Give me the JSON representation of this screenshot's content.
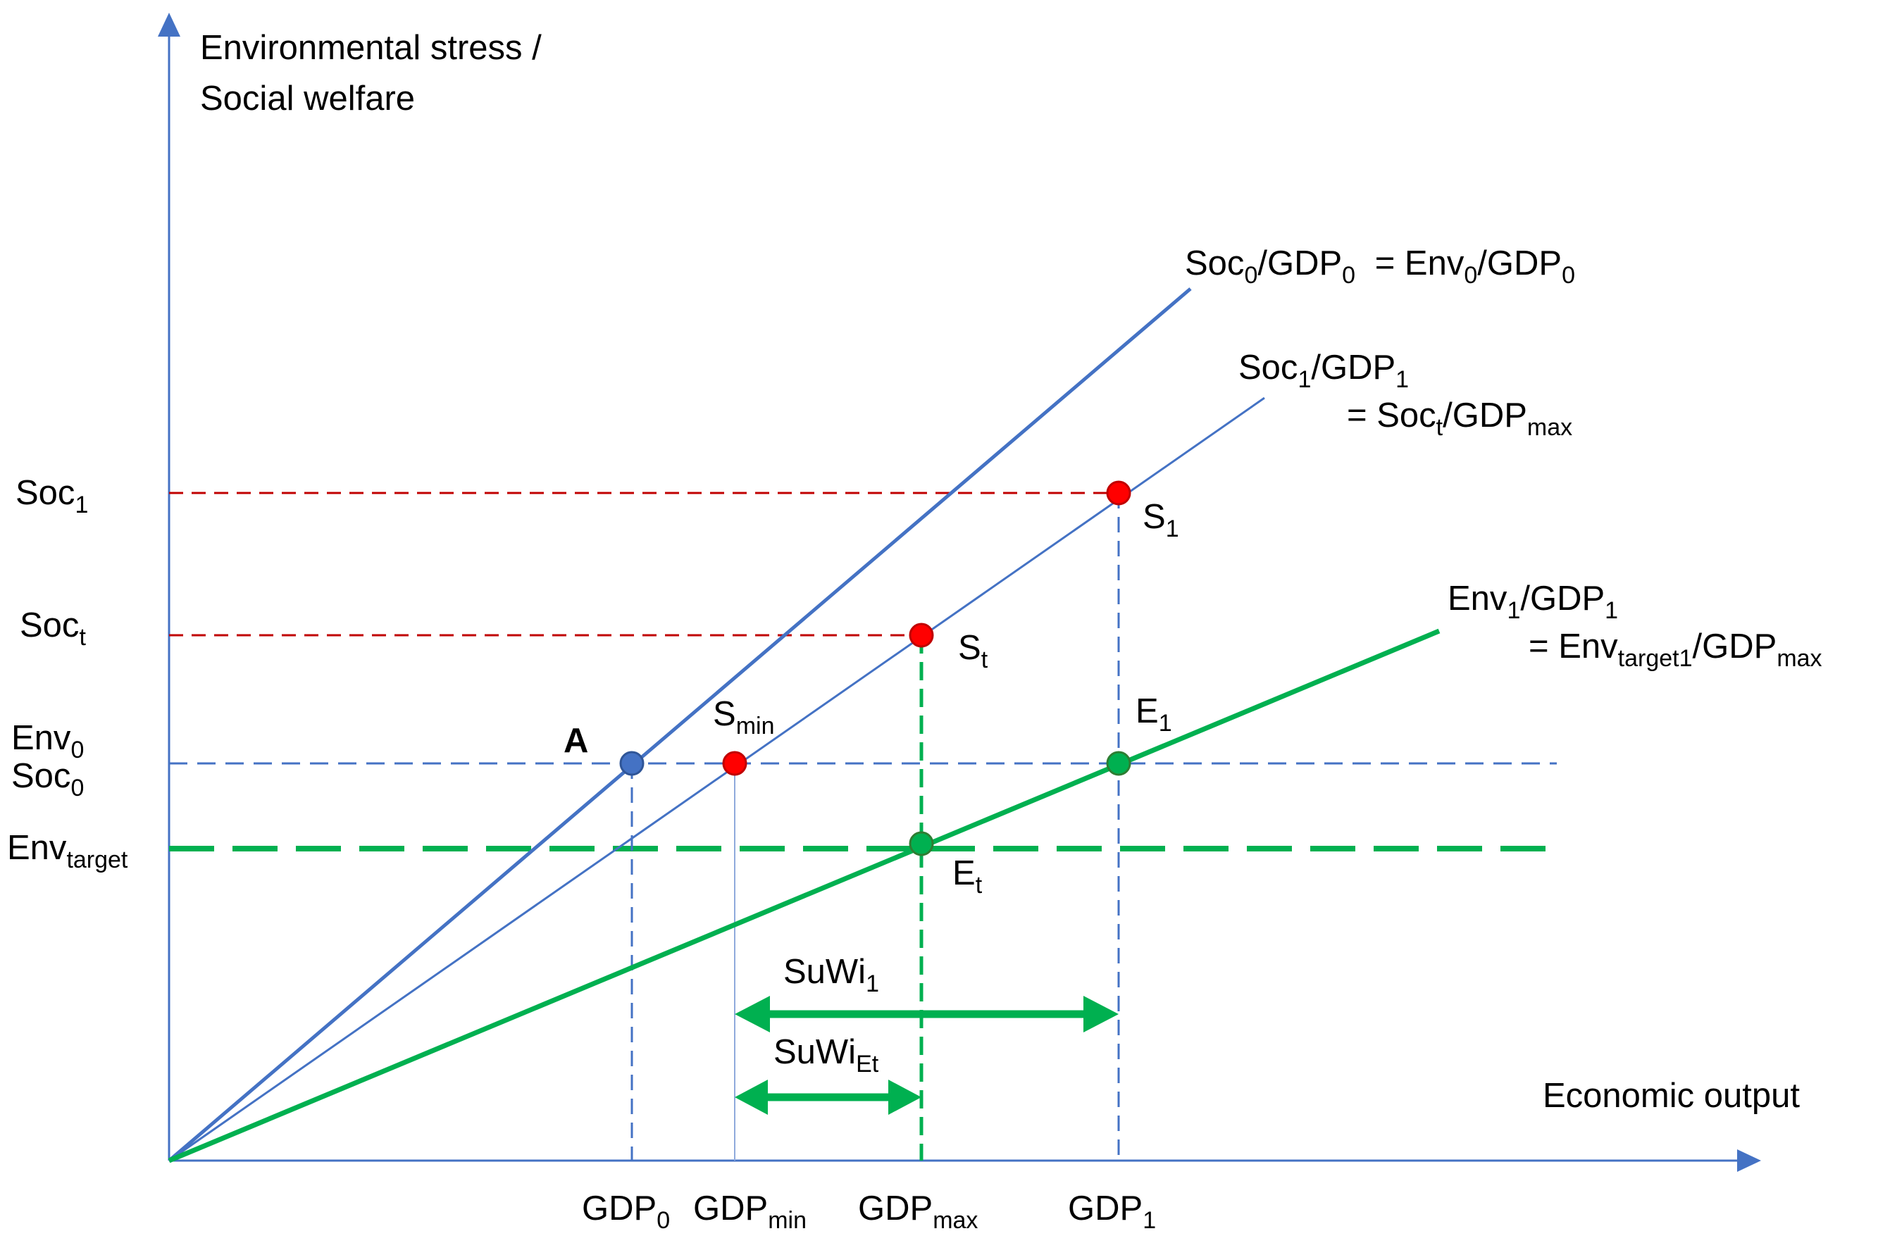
{
  "axes": {
    "y_title_line1": "Environmental stress /",
    "y_title_line2": "Social welfare",
    "x_title": "Economic output"
  },
  "line_labels": {
    "soc0_env0": {
      "a": "Soc",
      "a_sub": "0",
      "b": "/GDP",
      "b_sub": "0",
      "c": " = Env",
      "c_sub": "0",
      "d": "/GDP",
      "d_sub": "0"
    },
    "soc1": {
      "a": "Soc",
      "a_sub": "1",
      "b": "/GDP",
      "b_sub": "1"
    },
    "soct": {
      "a": "= Soc",
      "a_sub": "t",
      "b": "/GDP",
      "b_sub": "max"
    },
    "env1": {
      "a": "Env",
      "a_sub": "1",
      "b": "/GDP",
      "b_sub": "1"
    },
    "envt": {
      "a": "= Env",
      "a_sub": "target1",
      "b": "/GDP",
      "b_sub": "max"
    }
  },
  "y_labels": {
    "soc1": {
      "main": "Soc",
      "sub": "1"
    },
    "soct": {
      "main": "Soc",
      "sub": "t"
    },
    "env0": {
      "main": "Env",
      "sub": "0"
    },
    "soc0": {
      "main": "Soc",
      "sub": "0"
    },
    "envtarget": {
      "main": "Env",
      "sub": "target"
    }
  },
  "x_labels": {
    "gdp0": {
      "main": "GDP",
      "sub": "0"
    },
    "gdpmin": {
      "main": "GDP",
      "sub": "min"
    },
    "gdpmax": {
      "main": "GDP",
      "sub": "max"
    },
    "gdp1": {
      "main": "GDP",
      "sub": "1"
    }
  },
  "points": {
    "A": "A",
    "smin": {
      "main": "S",
      "sub": "min"
    },
    "st": {
      "main": "S",
      "sub": "t"
    },
    "s1": {
      "main": "S",
      "sub": "1"
    },
    "e1": {
      "main": "E",
      "sub": "1"
    },
    "et": {
      "main": "E",
      "sub": "t"
    }
  },
  "arrows": {
    "suwi1": {
      "main": "SuWi",
      "sub": "1"
    },
    "suwiet": {
      "main": "SuWi",
      "sub": "Et"
    }
  },
  "colors": {
    "blue": "#4472C4",
    "green": "#00B050",
    "red": "#C00000",
    "point_red": "#FF0000",
    "point_blue": "#4472C4",
    "point_green": "#00B050"
  }
}
